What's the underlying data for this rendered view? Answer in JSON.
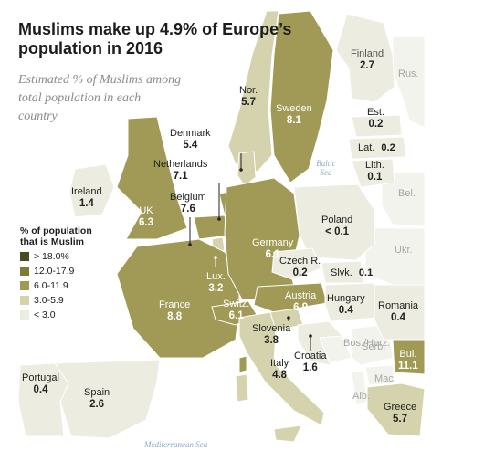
{
  "title": "Muslims make up 4.9% of Europe’s population in 2016",
  "subtitle": "Estimated % of Muslims among total population in each country",
  "legend": {
    "title": "% of population that is Muslim",
    "items": [
      {
        "label": "> 18.0%",
        "color": "#4a4b1f"
      },
      {
        "label": "12.0-17.9",
        "color": "#7e7b35"
      },
      {
        "label": "6.0-11.9",
        "color": "#a09a56"
      },
      {
        "label": "3.0-5.9",
        "color": "#d4d3ad"
      },
      {
        "label": "< 3.0",
        "color": "#ecede0"
      }
    ]
  },
  "countries": [
    {
      "name": "Finland",
      "value": "2.7",
      "bin": 4
    },
    {
      "name": "Sweden",
      "value": "8.1",
      "bin": 2
    },
    {
      "name": "Nor.",
      "value": "5.7",
      "bin": 3
    },
    {
      "name": "Est.",
      "value": "0.2",
      "bin": 4
    },
    {
      "name": "Lat.",
      "value": "0.2",
      "bin": 4
    },
    {
      "name": "Lith.",
      "value": "0.1",
      "bin": 4
    },
    {
      "name": "Denmark",
      "value": "5.4",
      "bin": 3
    },
    {
      "name": "Netherlands",
      "value": "7.1",
      "bin": 2
    },
    {
      "name": "Belgium",
      "value": "7.6",
      "bin": 2
    },
    {
      "name": "UK",
      "value": "6.3",
      "bin": 2
    },
    {
      "name": "Ireland",
      "value": "1.4",
      "bin": 4
    },
    {
      "name": "Poland",
      "value": "< 0.1",
      "bin": 4
    },
    {
      "name": "Germany",
      "value": "6.1",
      "bin": 2
    },
    {
      "name": "Czech R.",
      "value": "0.2",
      "bin": 4
    },
    {
      "name": "Slvk.",
      "value": "0.1",
      "bin": 4
    },
    {
      "name": "Lux.",
      "value": "3.2",
      "bin": 3
    },
    {
      "name": "France",
      "value": "8.8",
      "bin": 2
    },
    {
      "name": "Switz.",
      "value": "6.1",
      "bin": 2
    },
    {
      "name": "Austria",
      "value": "6.9",
      "bin": 2
    },
    {
      "name": "Hungary",
      "value": "0.4",
      "bin": 4
    },
    {
      "name": "Romania",
      "value": "0.4",
      "bin": 4
    },
    {
      "name": "Slovenia",
      "value": "3.8",
      "bin": 3
    },
    {
      "name": "Croatia",
      "value": "1.6",
      "bin": 4
    },
    {
      "name": "Italy",
      "value": "4.8",
      "bin": 3
    },
    {
      "name": "Bul.",
      "value": "11.1",
      "bin": 2
    },
    {
      "name": "Portugal",
      "value": "0.4",
      "bin": 4
    },
    {
      "name": "Spain",
      "value": "2.6",
      "bin": 4
    },
    {
      "name": "Greece",
      "value": "5.7",
      "bin": 3
    }
  ],
  "other_labels": [
    "Rus.",
    "Bel.",
    "Ukr.",
    "Bos./Herz.",
    "Serb.",
    "Mac.",
    "Alb."
  ],
  "seas": [
    "Baltic Sea",
    "Mediterranean Sea"
  ]
}
